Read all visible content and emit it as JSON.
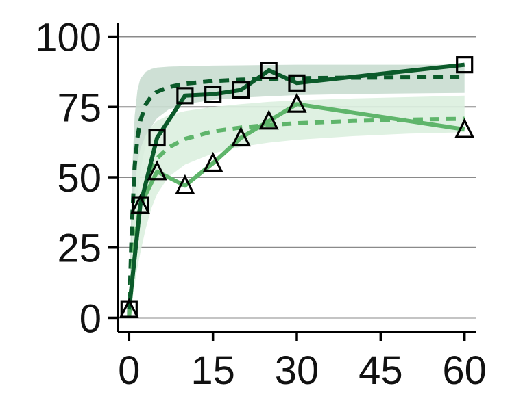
{
  "chart_data": {
    "type": "line",
    "title": "",
    "xlabel": "",
    "ylabel": "",
    "xlim": [
      -2,
      62
    ],
    "ylim": [
      -5,
      105
    ],
    "x_ticks": [
      0,
      15,
      30,
      45,
      60
    ],
    "y_ticks": [
      0,
      25,
      50,
      75,
      100
    ],
    "x_tick_labels": [
      "0",
      "15",
      "30",
      "45",
      "60"
    ],
    "y_tick_labels": [
      "0",
      "25",
      "50",
      "75",
      "100"
    ],
    "grid": "horizontal",
    "legend": "none",
    "series": [
      {
        "marker": "square",
        "color": "#0b5a2a",
        "x": [
          0,
          2,
          5,
          10,
          15,
          20,
          25,
          30,
          60
        ],
        "y": [
          3,
          40,
          64,
          79,
          79.5,
          81,
          88,
          83.5,
          90
        ]
      },
      {
        "marker": "triangle",
        "color": "#5fb56b",
        "x": [
          0,
          2,
          5,
          10,
          15,
          20,
          25,
          30,
          60
        ],
        "y": [
          3,
          40,
          52,
          47,
          55,
          64,
          70,
          76,
          67
        ]
      }
    ],
    "fits": [
      {
        "style": "dashed",
        "color": "#0b5a2a",
        "band_color": "#c9ddd0",
        "x": [
          0,
          0.5,
          1,
          1.5,
          2,
          3,
          4,
          5,
          7,
          10,
          15,
          20,
          25,
          30,
          40,
          50,
          60
        ],
        "y": [
          0,
          33,
          54,
          64,
          70,
          76,
          78.8,
          80.4,
          82,
          83.3,
          84.2,
          84.7,
          85,
          85.2,
          85.4,
          85.5,
          85.6
        ],
        "upper": [
          0,
          50,
          72,
          81,
          85,
          87.5,
          88.5,
          89,
          89.3,
          89.5,
          89.7,
          89.8,
          89.9,
          90,
          90,
          90,
          90
        ],
        "lower": [
          0,
          15,
          30,
          42,
          52,
          62,
          68,
          71,
          74,
          76,
          77.5,
          78.3,
          78.8,
          79.2,
          79.6,
          79.8,
          80
        ]
      },
      {
        "style": "dashed",
        "color": "#5fb56b",
        "band_color": "#dcefdf",
        "x": [
          0,
          0.5,
          1,
          1.5,
          2,
          3,
          4,
          5,
          7,
          10,
          15,
          20,
          25,
          30,
          40,
          50,
          60
        ],
        "y": [
          0,
          15,
          26,
          34,
          40,
          48,
          53,
          56.7,
          60.5,
          63.6,
          66.3,
          67.7,
          68.6,
          69.2,
          70,
          70.5,
          70.8
        ],
        "upper": [
          0,
          30,
          46,
          55,
          60,
          65,
          68,
          70,
          72,
          73.5,
          75,
          76,
          76.8,
          77.3,
          78,
          78.5,
          79
        ],
        "lower": [
          0,
          5,
          12,
          18,
          23,
          32,
          39,
          44,
          50,
          54.5,
          58.5,
          60.8,
          62.3,
          63.3,
          64.6,
          65.5,
          66
        ]
      }
    ]
  }
}
